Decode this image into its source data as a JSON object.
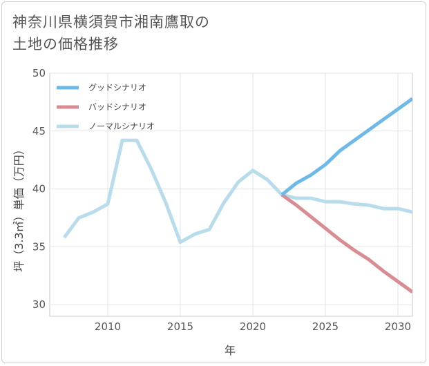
{
  "title_lines": [
    "神奈川県横須賀市湘南鷹取の",
    "土地の価格推移"
  ],
  "chart_data": {
    "type": "line",
    "title": "神奈川県横須賀市湘南鷹取の土地の価格推移",
    "xlabel": "年",
    "ylabel": "坪（3.3㎡）単価（万円）",
    "xlim": [
      2006,
      2031
    ],
    "ylim": [
      29,
      50
    ],
    "xticks": [
      2010,
      2015,
      2020,
      2025,
      2030
    ],
    "yticks": [
      30,
      35,
      40,
      45,
      50
    ],
    "grid": true,
    "legend_position": "top-left",
    "series": [
      {
        "name": "グッドシナリオ",
        "color": "#6cb9ea",
        "x": [
          2022,
          2023,
          2024,
          2025,
          2026,
          2027,
          2028,
          2029,
          2030,
          2031
        ],
        "y": [
          39.5,
          40.5,
          41.2,
          42.1,
          43.3,
          44.2,
          45.1,
          46.0,
          46.9,
          47.8
        ]
      },
      {
        "name": "バッドシナリオ",
        "color": "#d98c92",
        "x": [
          2022,
          2023,
          2024,
          2025,
          2026,
          2027,
          2028,
          2029,
          2030,
          2031
        ],
        "y": [
          39.5,
          38.6,
          37.6,
          36.6,
          35.6,
          34.7,
          33.9,
          32.9,
          32.0,
          31.1
        ]
      },
      {
        "name": "ノーマルシナリオ",
        "color": "#b8dcec",
        "x": [
          2007,
          2008,
          2009,
          2010,
          2011,
          2012,
          2013,
          2014,
          2015,
          2016,
          2017,
          2018,
          2019,
          2020,
          2021,
          2022,
          2023,
          2024,
          2025,
          2026,
          2027,
          2028,
          2029,
          2030,
          2031
        ],
        "y": [
          35.8,
          37.5,
          38.0,
          38.7,
          44.2,
          44.2,
          41.7,
          38.8,
          35.4,
          36.1,
          36.5,
          38.8,
          40.6,
          41.6,
          40.8,
          39.5,
          39.2,
          39.2,
          38.9,
          38.9,
          38.7,
          38.6,
          38.3,
          38.3,
          38.0
        ]
      }
    ]
  }
}
